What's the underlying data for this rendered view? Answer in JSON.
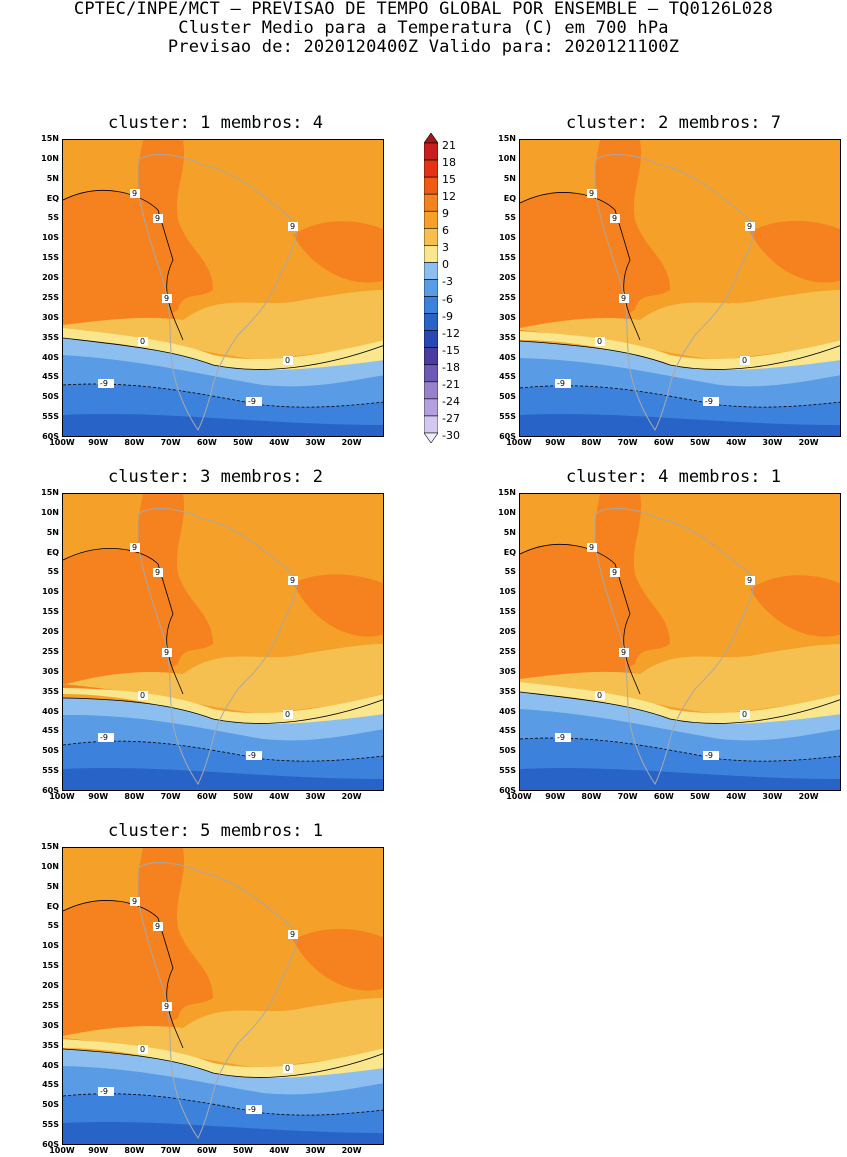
{
  "header": {
    "line1": "CPTEC/INPE/MCT – PREVISAO DE TEMPO GLOBAL POR ENSEMBLE – TQ0126L028",
    "line2": "Cluster Medio para a Temperatura (C) em 700 hPa",
    "line3": "Previsao de: 2020120400Z   Valido para: 2020121100Z"
  },
  "axes": {
    "lat_labels": [
      "15N",
      "10N",
      "5N",
      "EQ",
      "5S",
      "10S",
      "15S",
      "20S",
      "25S",
      "30S",
      "35S",
      "40S",
      "45S",
      "50S",
      "55S",
      "60S"
    ],
    "lon_labels": [
      "100W",
      "90W",
      "80W",
      "70W",
      "60W",
      "50W",
      "40W",
      "30W",
      "20W"
    ]
  },
  "panels": [
    {
      "title": "cluster: 1   membros: 4"
    },
    {
      "title": "cluster: 2   membros: 7"
    },
    {
      "title": "cluster: 3   membros: 2"
    },
    {
      "title": "cluster: 4   membros: 1"
    },
    {
      "title": "cluster: 5   membros: 1"
    }
  ],
  "legend": {
    "labels": [
      "21",
      "18",
      "15",
      "12",
      "9",
      "6",
      "3",
      "0",
      "-3",
      "-6",
      "-9",
      "-12",
      "-15",
      "-18",
      "-21",
      "-24",
      "-27",
      "-30"
    ],
    "colors": [
      "#a01818",
      "#c81e1e",
      "#e63214",
      "#f05a14",
      "#f5821e",
      "#f5a028",
      "#f5c050",
      "#fae68c",
      "#8cbef0",
      "#5a9be6",
      "#3c82dc",
      "#2864c8",
      "#2846b4",
      "#4b3ca0",
      "#6e5ab4",
      "#9682c8",
      "#b4a0dc",
      "#d2c8f0",
      "#f0ecfa"
    ]
  },
  "contour_labels": {
    "warm": "9",
    "zero": "0",
    "cold": "-9"
  }
}
